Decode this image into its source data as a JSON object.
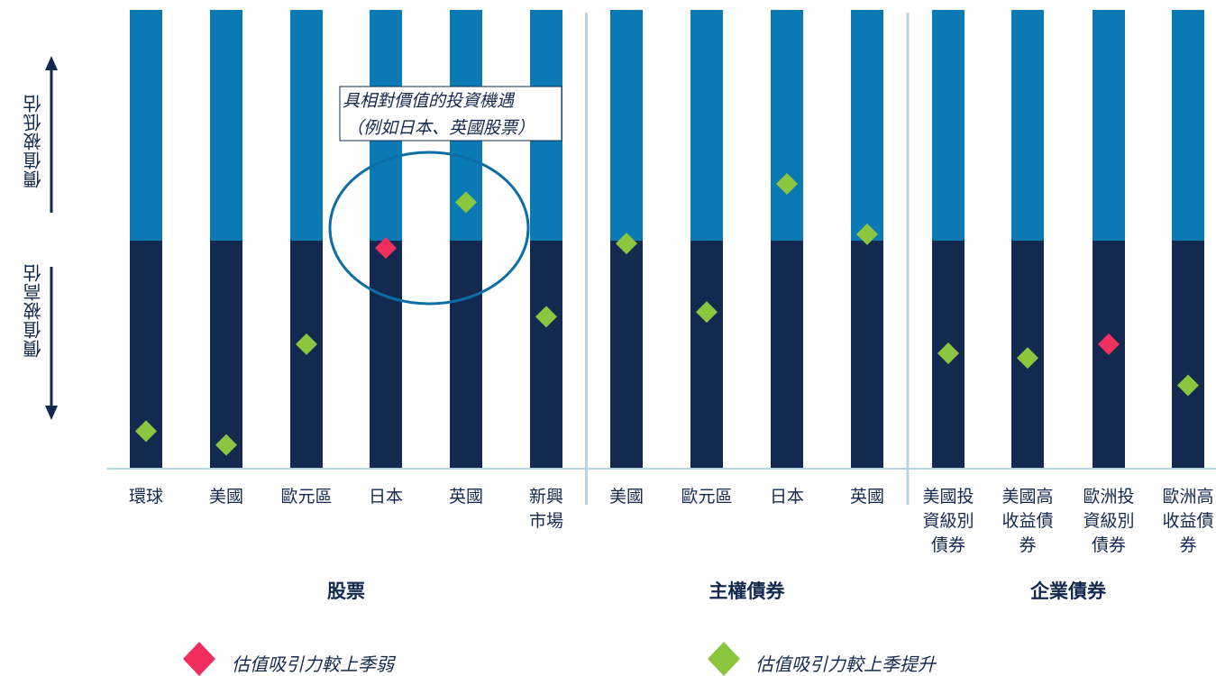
{
  "y_axis": {
    "upper_label": "價值被低估",
    "lower_label": "價值被高估"
  },
  "annotation": {
    "line1": "具相對價值的投資機遇",
    "line2": "（例如日本、英國股票）"
  },
  "legend": {
    "red_label": "估值吸引力較上季弱",
    "green_label": "估值吸引力較上季提升"
  },
  "colors": {
    "upper_band": "#0b7ab4",
    "lower_band": "#13294f",
    "marker_green": "#8cc63f",
    "marker_red": "#ef2f5e",
    "separator": "#b7d5e4",
    "annotation_ellipse": "#0b6ea6"
  },
  "chart_data": {
    "type": "scatter",
    "description_scale": "position within band: 1 = top (most undervalued), 0 = bottom (most overvalued), 0.5 = midline",
    "groups": [
      {
        "name": "股票",
        "items": [
          {
            "label": [
              "環球"
            ],
            "value": 0.08,
            "marker": "green"
          },
          {
            "label": [
              "美國"
            ],
            "value": 0.05,
            "marker": "green"
          },
          {
            "label": [
              "歐元區"
            ],
            "value": 0.27,
            "marker": "green"
          },
          {
            "label": [
              "日本"
            ],
            "value": 0.48,
            "marker": "red"
          },
          {
            "label": [
              "英國"
            ],
            "value": 0.58,
            "marker": "green"
          },
          {
            "label": [
              "新興",
              "市場"
            ],
            "value": 0.33,
            "marker": "green"
          }
        ]
      },
      {
        "name": "主權債券",
        "items": [
          {
            "label": [
              "美國"
            ],
            "value": 0.49,
            "marker": "green"
          },
          {
            "label": [
              "歐元區"
            ],
            "value": 0.34,
            "marker": "green"
          },
          {
            "label": [
              "日本"
            ],
            "value": 0.62,
            "marker": "green"
          },
          {
            "label": [
              "英國"
            ],
            "value": 0.51,
            "marker": "green"
          }
        ]
      },
      {
        "name": "企業債券",
        "items": [
          {
            "label": [
              "美國投",
              "資級別",
              "債券"
            ],
            "value": 0.25,
            "marker": "green"
          },
          {
            "label": [
              "美國高",
              "收益債",
              "券"
            ],
            "value": 0.24,
            "marker": "green"
          },
          {
            "label": [
              "歐洲投",
              "資級別",
              "債券"
            ],
            "value": 0.27,
            "marker": "red"
          },
          {
            "label": [
              "歐洲高",
              "收益債",
              "券"
            ],
            "value": 0.18,
            "marker": "green"
          }
        ]
      }
    ]
  }
}
